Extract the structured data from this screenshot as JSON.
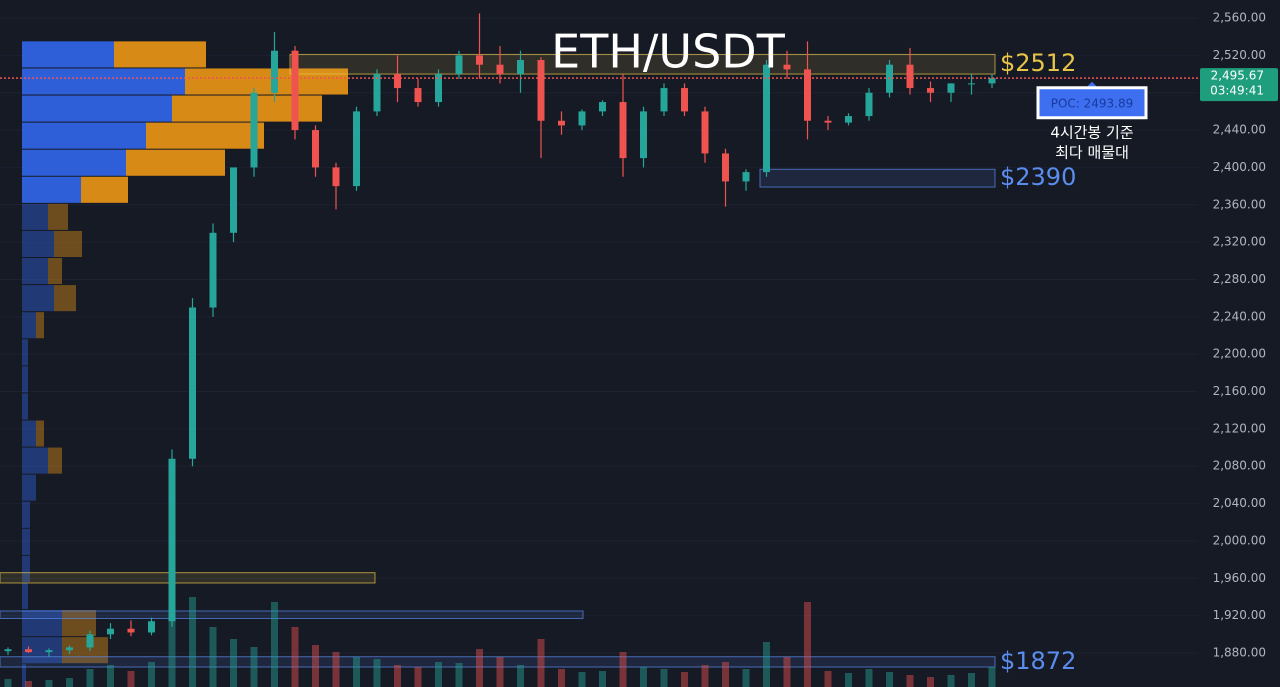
{
  "chart_data": {
    "type": "candlestick",
    "title": "ETH/USDT",
    "ylim": [
      1843.6,
      2579.3
    ],
    "yticks": [
      {
        "value": 1880,
        "label": "1,880.00"
      },
      {
        "value": 1920,
        "label": "1,920.00"
      },
      {
        "value": 1960,
        "label": "1,960.00"
      },
      {
        "value": 2000,
        "label": "2,000.00"
      },
      {
        "value": 2040,
        "label": "2,040.00"
      },
      {
        "value": 2080,
        "label": "2,080.00"
      },
      {
        "value": 2120,
        "label": "2,120.00"
      },
      {
        "value": 2160,
        "label": "2,160.00"
      },
      {
        "value": 2200,
        "label": "2,200.00"
      },
      {
        "value": 2240,
        "label": "2,240.00"
      },
      {
        "value": 2280,
        "label": "2,280.00"
      },
      {
        "value": 2320,
        "label": "2,320.00"
      },
      {
        "value": 2360,
        "label": "2,360.00"
      },
      {
        "value": 2400,
        "label": "2,400.00"
      },
      {
        "value": 2440,
        "label": "2,440.00"
      },
      {
        "value": 2480,
        "label": "2,480.00"
      },
      {
        "value": 2520,
        "label": "2,520.00"
      },
      {
        "value": 2560,
        "label": "2,560.00"
      }
    ],
    "up_color": "#26a69a",
    "down_color": "#ef5350",
    "open": [
      1882,
      1884,
      1881,
      1883,
      1886,
      1900,
      1906,
      1902,
      1914,
      2088,
      2250,
      2330,
      2400,
      2480,
      2525,
      2440,
      2400,
      2380,
      2460,
      2500,
      2485,
      2470,
      2500,
      2520,
      2510,
      2500,
      2515,
      2450,
      2445,
      2460,
      2470,
      2410,
      2460,
      2485,
      2460,
      2415,
      2385,
      2395,
      2510,
      2505,
      2450,
      2448,
      2455,
      2480,
      2510,
      2485,
      2480,
      2490,
      2490
    ],
    "high": [
      1886,
      1887,
      1885,
      1888,
      1904,
      1912,
      1915,
      1918,
      2098,
      2260,
      2340,
      2400,
      2485,
      2545,
      2530,
      2445,
      2405,
      2465,
      2505,
      2520,
      2495,
      2505,
      2525,
      2565,
      2530,
      2525,
      2518,
      2460,
      2462,
      2472,
      2500,
      2465,
      2490,
      2490,
      2465,
      2420,
      2398,
      2515,
      2525,
      2535,
      2455,
      2458,
      2485,
      2515,
      2528,
      2492,
      2490,
      2500,
      2500
    ],
    "low": [
      1878,
      1880,
      1876,
      1879,
      1882,
      1895,
      1898,
      1899,
      1908,
      2080,
      2240,
      2320,
      2390,
      2470,
      2430,
      2390,
      2355,
      2375,
      2455,
      2470,
      2465,
      2465,
      2495,
      2495,
      2490,
      2480,
      2410,
      2435,
      2440,
      2455,
      2390,
      2400,
      2455,
      2455,
      2405,
      2358,
      2375,
      2390,
      2495,
      2430,
      2440,
      2445,
      2450,
      2475,
      2478,
      2470,
      2470,
      2478,
      2485
    ],
    "close": [
      1884,
      1881,
      1883,
      1886,
      1900,
      1906,
      1902,
      1914,
      2088,
      2250,
      2330,
      2400,
      2480,
      2525,
      2440,
      2400,
      2380,
      2460,
      2500,
      2485,
      2470,
      2500,
      2520,
      2510,
      2500,
      2515,
      2450,
      2445,
      2460,
      2470,
      2410,
      2460,
      2485,
      2460,
      2415,
      2385,
      2395,
      2510,
      2505,
      2450,
      2448,
      2455,
      2480,
      2510,
      2485,
      2480,
      2490,
      2490,
      2495.67
    ],
    "volume": [
      8,
      6,
      7,
      9,
      18,
      22,
      16,
      25,
      155,
      90,
      60,
      48,
      40,
      85,
      60,
      42,
      35,
      30,
      28,
      22,
      20,
      25,
      24,
      38,
      30,
      22,
      48,
      18,
      15,
      16,
      35,
      20,
      18,
      15,
      22,
      25,
      18,
      45,
      30,
      85,
      16,
      14,
      18,
      15,
      12,
      10,
      12,
      14,
      20
    ],
    "profile": {
      "bins": [
        2535,
        2506,
        2477,
        2448,
        2419,
        2390,
        2361,
        2332,
        2303,
        2274,
        2245,
        2216,
        2187,
        2158,
        2129,
        2100,
        2071,
        2042,
        2013,
        1984,
        1955,
        1926,
        1897,
        1868,
        1839
      ],
      "buy": [
        92,
        163,
        150,
        124,
        104,
        59,
        26,
        32,
        26,
        32,
        14,
        6,
        6,
        6,
        14,
        26,
        14,
        8,
        8,
        8,
        6,
        40,
        40,
        4
      ],
      "sell": [
        92,
        163,
        150,
        118,
        99,
        47,
        20,
        28,
        14,
        22,
        8,
        0,
        0,
        0,
        8,
        14,
        0,
        0,
        0,
        0,
        0,
        34,
        46,
        0
      ],
      "value_area": [
        2361,
        2535
      ]
    },
    "zones": [
      {
        "low": 2500,
        "high": 2521,
        "label": "$2512",
        "color": "#e8c547"
      },
      {
        "low": 2379,
        "high": 2398,
        "label": "$2390",
        "color": "#5b8def"
      },
      {
        "low": 1865,
        "high": 1876,
        "label": "$1872",
        "color": "#5b8def"
      },
      {
        "low": 1955,
        "high": 1966,
        "color": "#e8c547"
      },
      {
        "low": 1917,
        "high": 1925,
        "color": "#5b8def"
      }
    ],
    "last_price": {
      "value": 2495.67,
      "label": "2,495.67",
      "countdown": "03:49:41"
    },
    "poc": {
      "value": 2493.89,
      "label": "POC: 2493.89"
    },
    "annotation": [
      "4시간봉 기준",
      "최다 매물대"
    ]
  }
}
